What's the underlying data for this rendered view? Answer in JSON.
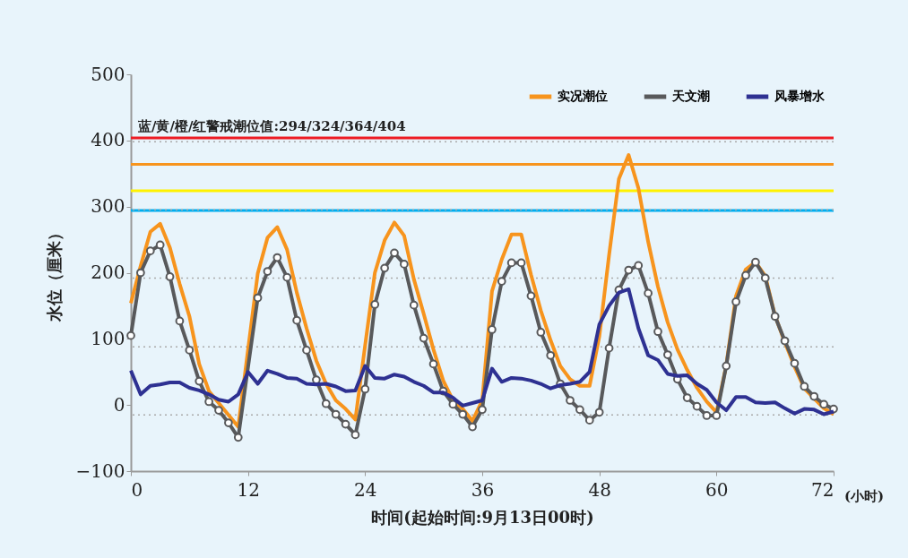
{
  "chart_data": {
    "type": "line",
    "xlabel": "时间(起始时间:9月13日00时)",
    "ylabel": "水位（厘米）",
    "annotations": [
      "蓝/黄/橙/红警戒潮位值:294/324/364/404",
      "(小时)"
    ],
    "xlim": [
      0,
      72
    ],
    "xticks": [
      0,
      12,
      24,
      36,
      48,
      60,
      72
    ],
    "ylim": [
      -100,
      500
    ],
    "yticks": [
      -100,
      0,
      100,
      200,
      300,
      400,
      500
    ],
    "legend": "top right",
    "line_style": "solid",
    "ref_lines": [
      {
        "axis": "y",
        "value": 294,
        "label": null,
        "color": "#00aeef",
        "line_style": "solid"
      },
      {
        "axis": "y",
        "value": 324,
        "label": null,
        "color": "#fff200",
        "line_style": "solid"
      },
      {
        "axis": "y",
        "value": 364,
        "label": null,
        "color": "#f7941d",
        "line_style": "solid"
      },
      {
        "axis": "y",
        "value": 404,
        "label": null,
        "color": "#ed1c24",
        "line_style": "solid"
      },
      {
        "axis": "y",
        "value": -15,
        "label": null,
        "color": "#aaaaaa",
        "line_style": "dotted"
      },
      {
        "axis": "y",
        "value": 88,
        "label": null,
        "color": "#aaaaaa",
        "line_style": "dotted"
      },
      {
        "axis": "y",
        "value": 192,
        "label": null,
        "color": "#aaaaaa",
        "line_style": "dotted"
      },
      {
        "axis": "y",
        "value": 295,
        "label": null,
        "color": "#aaaaaa",
        "line_style": "dotted"
      },
      {
        "axis": "y",
        "value": 398,
        "label": null,
        "color": "#aaaaaa",
        "line_style": "dotted"
      }
    ],
    "series": [
      {
        "name": "实况潮位",
        "color": "#f7941d",
        "marker": "none",
        "x": [
          0,
          1,
          2,
          3,
          4,
          5,
          6,
          7,
          8,
          9,
          10,
          11,
          13,
          14,
          15,
          16,
          17,
          18,
          19,
          20,
          21,
          22,
          23,
          24,
          25,
          26,
          27,
          28,
          29,
          30,
          31,
          32,
          33,
          34,
          35,
          36,
          37,
          38,
          39,
          40,
          41,
          42,
          43,
          44,
          45,
          46,
          47,
          48,
          49,
          50,
          51,
          52,
          53,
          54,
          55,
          56,
          57,
          58,
          59,
          60,
          61,
          62,
          63,
          64,
          65,
          66,
          67,
          68,
          69,
          70,
          71,
          72
        ],
        "values": [
          154,
          210,
          262,
          274,
          238,
          183,
          134,
          62,
          21,
          3,
          -15,
          -33,
          199,
          253,
          269,
          235,
          170,
          116,
          67,
          32,
          7,
          -6,
          -22,
          90,
          200,
          249,
          276,
          256,
          190,
          138,
          84,
          37,
          7,
          -6,
          -24,
          7,
          172,
          220,
          258,
          258,
          197,
          143,
          98,
          59,
          39,
          29,
          29,
          104,
          227,
          342,
          378,
          328,
          247,
          179,
          125,
          84,
          53,
          26,
          5,
          -11,
          60,
          165,
          205,
          216,
          195,
          135,
          95,
          58,
          25,
          10,
          -5,
          -14
        ]
      },
      {
        "name": "天文潮",
        "color": "#58595b",
        "marker": "circle",
        "x": [
          0,
          1,
          2,
          3,
          4,
          5,
          6,
          7,
          8,
          9,
          10,
          11,
          13,
          14,
          15,
          16,
          17,
          18,
          19,
          20,
          21,
          22,
          23,
          24,
          25,
          26,
          27,
          28,
          29,
          30,
          31,
          32,
          33,
          34,
          35,
          36,
          37,
          38,
          39,
          40,
          41,
          42,
          43,
          44,
          45,
          46,
          47,
          48,
          49,
          50,
          51,
          52,
          53,
          54,
          55,
          56,
          57,
          58,
          59,
          60,
          61,
          62,
          63,
          64,
          65,
          66,
          67,
          68,
          69,
          70,
          71,
          72
        ],
        "values": [
          105,
          200,
          233,
          242,
          194,
          127,
          83,
          36,
          5,
          -8,
          -27,
          -49,
          162,
          202,
          223,
          193,
          128,
          83,
          38,
          2,
          -14,
          -29,
          -45,
          24,
          152,
          207,
          230,
          213,
          151,
          101,
          62,
          21,
          1,
          -14,
          -33,
          -7,
          114,
          187,
          215,
          215,
          165,
          110,
          75,
          32,
          7,
          -7,
          -23,
          -11,
          86,
          174,
          204,
          211,
          169,
          111,
          76,
          39,
          11,
          -2,
          -16,
          -16,
          59,
          156,
          196,
          216,
          192,
          134,
          97,
          63,
          28,
          13,
          1,
          -6
        ]
      },
      {
        "name": "风暴增水",
        "color": "#2e3192",
        "marker": "none",
        "x": [
          0,
          1,
          2,
          3,
          4,
          5,
          6,
          7,
          8,
          9,
          10,
          11,
          12,
          13,
          14,
          15,
          16,
          17,
          18,
          19,
          20,
          21,
          22,
          23,
          24,
          25,
          26,
          27,
          28,
          29,
          30,
          31,
          32,
          33,
          34,
          35,
          36,
          37,
          38,
          39,
          40,
          41,
          42,
          43,
          44,
          45,
          46,
          47,
          48,
          49,
          50,
          51,
          52,
          53,
          54,
          55,
          56,
          57,
          58,
          59,
          60,
          61,
          62,
          63,
          64,
          65,
          66,
          67,
          68,
          69,
          70,
          71,
          72
        ],
        "values": [
          52,
          16,
          29,
          31,
          34,
          34,
          26,
          22,
          16,
          8,
          5,
          16,
          50,
          32,
          52,
          47,
          41,
          40,
          32,
          31,
          32,
          28,
          21,
          22,
          59,
          41,
          40,
          46,
          43,
          35,
          29,
          19,
          19,
          11,
          -1,
          3,
          7,
          55,
          35,
          41,
          40,
          37,
          32,
          25,
          30,
          32,
          35,
          50,
          122,
          150,
          170,
          175,
          116,
          75,
          68,
          47,
          44,
          45,
          32,
          23,
          4,
          -8,
          12,
          12,
          4,
          3,
          4,
          -5,
          -13,
          -6,
          -7,
          -14,
          -10
        ]
      }
    ]
  }
}
